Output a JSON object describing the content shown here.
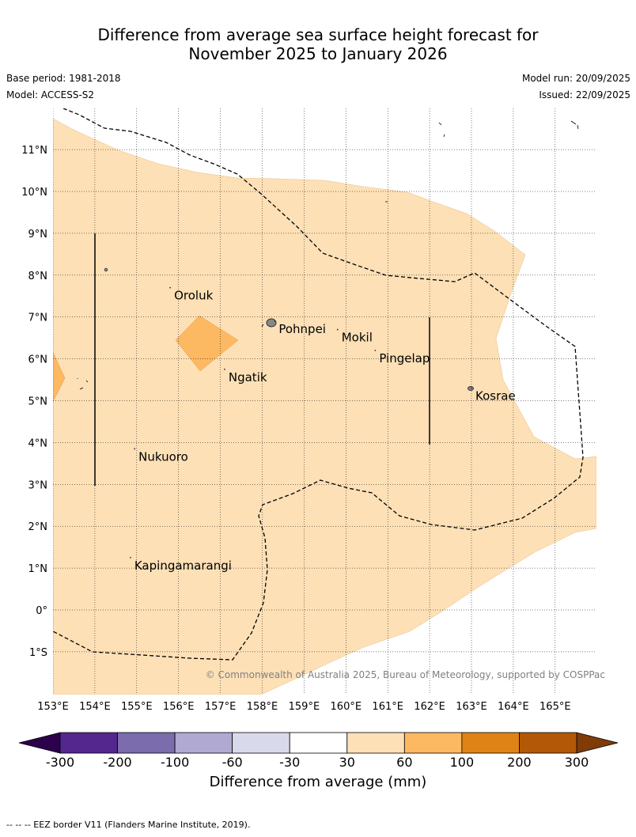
{
  "title_line1": "Difference from average sea surface height forecast for",
  "title_line2": "November 2025 to January 2026",
  "base_period": "Base period: 1981-2018",
  "model": "Model: ACCESS-S2",
  "model_run": "Model run: 20/09/2025",
  "issued": "Issued: 22/09/2025",
  "copyright": "© Commonwealth of Australia 2025, Bureau of Meteorology, supported by COSPPac",
  "lat_labels": [
    {
      "lat": 11,
      "label": "11°N"
    },
    {
      "lat": 10,
      "label": "10°N"
    },
    {
      "lat": 9,
      "label": "9°N"
    },
    {
      "lat": 8,
      "label": "8°N"
    },
    {
      "lat": 7,
      "label": "7°N"
    },
    {
      "lat": 6,
      "label": "6°N"
    },
    {
      "lat": 5,
      "label": "5°N"
    },
    {
      "lat": 4,
      "label": "4°N"
    },
    {
      "lat": 3,
      "label": "3°N"
    },
    {
      "lat": 2,
      "label": "2°N"
    },
    {
      "lat": 1,
      "label": "1°N"
    },
    {
      "lat": 0,
      "label": "0°"
    },
    {
      "lat": -1,
      "label": "1°S"
    }
  ],
  "lon_labels": [
    {
      "lon": 153,
      "label": "153°E"
    },
    {
      "lon": 154,
      "label": "154°E"
    },
    {
      "lon": 155,
      "label": "155°E"
    },
    {
      "lon": 156,
      "label": "156°E"
    },
    {
      "lon": 157,
      "label": "157°E"
    },
    {
      "lon": 158,
      "label": "158°E"
    },
    {
      "lon": 159,
      "label": "159°E"
    },
    {
      "lon": 160,
      "label": "160°E"
    },
    {
      "lon": 161,
      "label": "161°E"
    },
    {
      "lon": 162,
      "label": "162°E"
    },
    {
      "lon": 163,
      "label": "163°E"
    },
    {
      "lon": 164,
      "label": "164°E"
    },
    {
      "lon": 165,
      "label": "165°E"
    }
  ],
  "places": [
    {
      "name": "Oroluk",
      "lon": 155.8,
      "lat": 7.7
    },
    {
      "name": "Pohnpei",
      "lon": 158.3,
      "lat": 6.9
    },
    {
      "name": "Mokil",
      "lon": 159.8,
      "lat": 6.7
    },
    {
      "name": "Pingelap",
      "lon": 160.7,
      "lat": 6.2
    },
    {
      "name": "Ngatik",
      "lon": 157.1,
      "lat": 5.75
    },
    {
      "name": "Kosrae",
      "lon": 163.0,
      "lat": 5.3
    },
    {
      "name": "Nukuoro",
      "lon": 154.95,
      "lat": 3.85
    },
    {
      "name": "Kapingamarangi",
      "lon": 154.85,
      "lat": 1.25
    }
  ],
  "colorbar": {
    "tick_labels": [
      "-300",
      "-200",
      "-100",
      "-60",
      "-30",
      "30",
      "60",
      "100",
      "200",
      "300"
    ],
    "colors": [
      "#54278f",
      "#7a6cad",
      "#b0a9d1",
      "#d9d9ec",
      "#ffffff",
      "#fde0b6",
      "#fdb862",
      "#e08316",
      "#b35806"
    ],
    "under_color": "#2d004b",
    "over_color": "#7f3b08",
    "label": "Difference from average (mm)"
  },
  "footer": "--  --  -- EEZ border V11 (Flanders Marine Institute, 2019)."
}
